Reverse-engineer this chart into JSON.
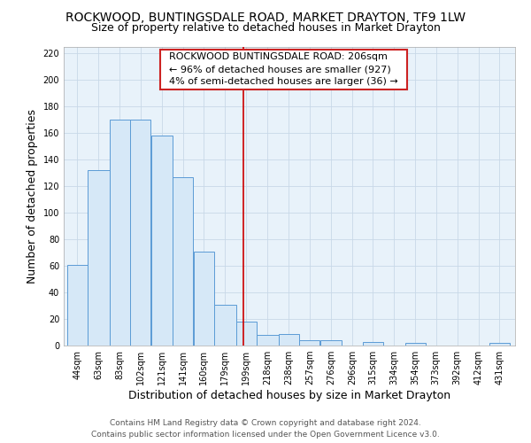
{
  "title": "ROCKWOOD, BUNTINGSDALE ROAD, MARKET DRAYTON, TF9 1LW",
  "subtitle": "Size of property relative to detached houses in Market Drayton",
  "xlabel": "Distribution of detached houses by size in Market Drayton",
  "ylabel": "Number of detached properties",
  "bin_edges": [
    44,
    63,
    83,
    102,
    121,
    141,
    160,
    179,
    199,
    218,
    238,
    257,
    276,
    296,
    315,
    334,
    354,
    373,
    392,
    412,
    431,
    450
  ],
  "bin_labels": [
    "44sqm",
    "63sqm",
    "83sqm",
    "102sqm",
    "121sqm",
    "141sqm",
    "160sqm",
    "179sqm",
    "199sqm",
    "218sqm",
    "238sqm",
    "257sqm",
    "276sqm",
    "296sqm",
    "315sqm",
    "334sqm",
    "354sqm",
    "373sqm",
    "392sqm",
    "412sqm",
    "431sqm"
  ],
  "heights": [
    61,
    132,
    170,
    170,
    158,
    127,
    71,
    31,
    18,
    8,
    9,
    4,
    4,
    0,
    3,
    0,
    2,
    0,
    0,
    0,
    2
  ],
  "bar_fill": "#d6e8f7",
  "bar_edge": "#5b9bd5",
  "grid_color": "#c8d8e8",
  "background_color": "#e8f2fa",
  "vline_x": 206,
  "vline_color": "#cc0000",
  "ylim": [
    0,
    225
  ],
  "yticks": [
    0,
    20,
    40,
    60,
    80,
    100,
    120,
    140,
    160,
    180,
    200,
    220
  ],
  "annotation_title": "ROCKWOOD BUNTINGSDALE ROAD: 206sqm",
  "annotation_line1": "← 96% of detached houses are smaller (927)",
  "annotation_line2": "4% of semi-detached houses are larger (36) →",
  "footer1": "Contains HM Land Registry data © Crown copyright and database right 2024.",
  "footer2": "Contains public sector information licensed under the Open Government Licence v3.0.",
  "title_fontsize": 10,
  "subtitle_fontsize": 9,
  "label_fontsize": 9,
  "tick_fontsize": 7,
  "annotation_fontsize": 8,
  "footer_fontsize": 6.5
}
